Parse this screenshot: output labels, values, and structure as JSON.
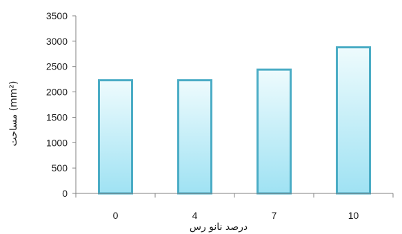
{
  "chart_data": {
    "type": "bar",
    "categories": [
      "0",
      "4",
      "7",
      "10"
    ],
    "values": [
      2230,
      2230,
      2440,
      2880
    ],
    "xlabel": "درصد نانو رس",
    "ylabel": "مساحت (mm²)",
    "ylim": [
      0,
      3500
    ],
    "yticks": [
      "0",
      "500",
      "1000",
      "1500",
      "2000",
      "2500",
      "3000",
      "3500"
    ],
    "grid": false,
    "legend": "none",
    "colors": {
      "bar_fill_top": "#eefbfd",
      "bar_fill_bottom": "#9fe2f3",
      "bar_stroke": "#4aacc5",
      "axis": "#808080"
    }
  }
}
